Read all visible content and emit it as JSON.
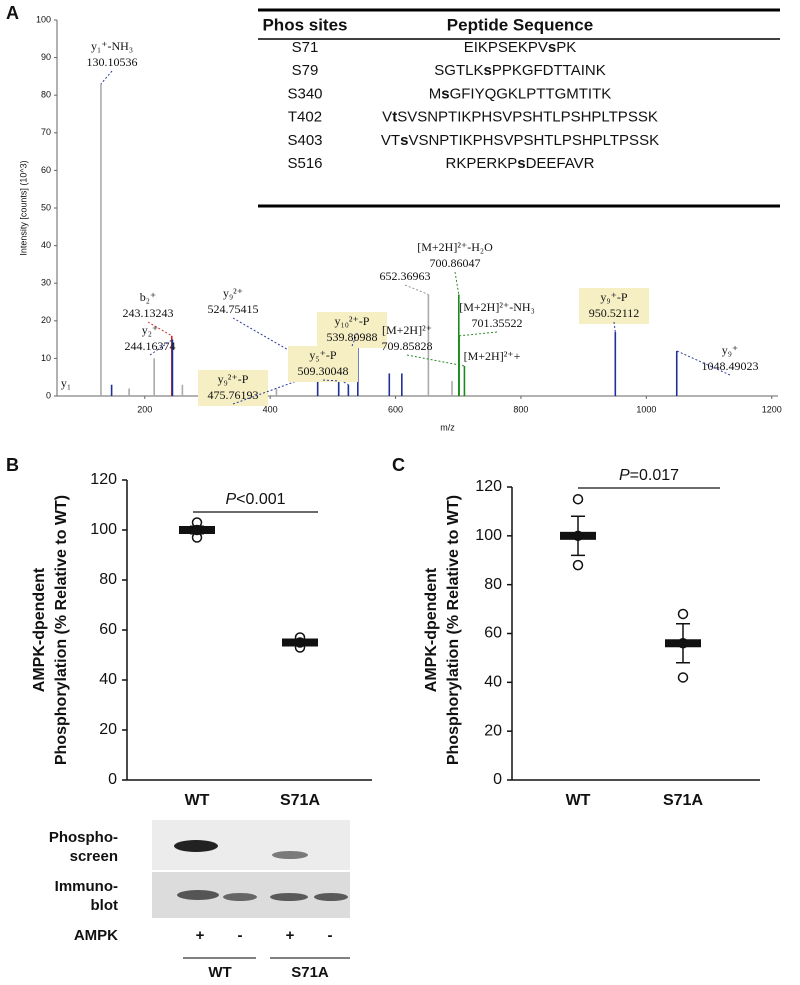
{
  "panel_labels": [
    "A",
    "B",
    "C"
  ],
  "table": {
    "header": [
      "Phos sites",
      "Peptide Sequence"
    ],
    "rows": [
      [
        "S71",
        "EIKPSEKPVsPK"
      ],
      [
        "S79",
        "SGTLKsPPKGFDTTAINK"
      ],
      [
        "S340",
        "MsGFIYQGKLPTTGMTITK"
      ],
      [
        "T402",
        "VtSVSNPTIKPHSVPSHTLPSHPLTPSSK"
      ],
      [
        "S403",
        "VTsVSNPTIKPHSVPSHTLPSHPLTPSSK"
      ],
      [
        "S516",
        "RKPERKPsDEEFAVR"
      ]
    ]
  },
  "blot": {
    "rows": [
      [
        "Phospho-",
        "screen"
      ],
      [
        "Immuno-",
        "blot"
      ]
    ],
    "treatment": "AMPK",
    "signs": [
      "+",
      "-",
      "+",
      "-"
    ],
    "groups": [
      "WT",
      "S71A"
    ]
  },
  "chart_data": [
    {
      "type": "stem",
      "ylabel": "Intensity [counts] (10^3)",
      "xlabel": "m/z",
      "xlim": [
        60,
        1210
      ],
      "xticks": [
        200,
        400,
        600,
        800,
        1000,
        1200
      ],
      "ylim": [
        0,
        100
      ],
      "yticks": [
        0,
        10,
        20,
        30,
        40,
        50,
        60,
        70,
        80,
        90,
        100
      ],
      "x": [
        130.1,
        147.11,
        175,
        215,
        243.13,
        244.16,
        260,
        290,
        410,
        475.76,
        509.3,
        524.75,
        539.81,
        590,
        610,
        652.37,
        690,
        700.86,
        701.36,
        709.86,
        950.52,
        1048.49
      ],
      "values": [
        83,
        3,
        2,
        10,
        16,
        15,
        3,
        2,
        2,
        6,
        4,
        3,
        17,
        6,
        6,
        27,
        4,
        27,
        16,
        8,
        17,
        12
      ],
      "colors": [
        "#aaaaaa",
        "#1f2f9a",
        "#aaaaaa",
        "#aaaaaa",
        "#c82828",
        "#1f2f9a",
        "#aaaaaa",
        "#aaaaaa",
        "#aaaaaa",
        "#1f2f9a",
        "#1f2f9a",
        "#1f2f9a",
        "#1f2f9a",
        "#1f2f9a",
        "#1f2f9a",
        "#aaaaaa",
        "#aaaaaa",
        "#1a8a1a",
        "#1a8a1a",
        "#1a8a1a",
        "#1f2f9a",
        "#1f2f9a"
      ],
      "annotations": [
        {
          "label": "y₁⁺-NH₃",
          "mz": 130.10536,
          "color": "#2b3a9c"
        },
        {
          "label": "b₂⁺",
          "mz": 243.13243,
          "color": "#c83030"
        },
        {
          "label": "y₂⁺",
          "mz": 244.16374,
          "color": "#2b3a9c"
        },
        {
          "label": "y₉²⁺-P",
          "mz": 475.76193,
          "color": "#2b3a9c",
          "boxed": true
        },
        {
          "label": "y₉²⁺",
          "mz": 524.75415,
          "color": "#2b3a9c"
        },
        {
          "label": "y₅⁺-P",
          "mz": 509.30048,
          "color": "#2b3a9c",
          "boxed": true
        },
        {
          "label": "y₁₀²⁺-P",
          "mz": 539.80988,
          "color": "#2b3a9c",
          "boxed": true
        },
        {
          "mz": 652.36963,
          "color": "#999999"
        },
        {
          "label": "[M+2H]²⁺-H₂O",
          "mz": 700.86047,
          "color": "#2a8a2a"
        },
        {
          "label": "[M+2H]²⁺-NH₃",
          "mz": 701.35522,
          "color": "#2a8a2a"
        },
        {
          "label": "[M+2H]²⁺",
          "mz": 709.85828,
          "color": "#2a8a2a"
        },
        {
          "label": "[M+2H]²⁺+",
          "color": "#2a8a2a"
        },
        {
          "label": "y₉⁺-P",
          "mz": 950.52112,
          "color": "#2b3a9c",
          "boxed": true
        },
        {
          "label": "y₉⁺",
          "mz": 1048.49023,
          "color": "#2b3a9c"
        },
        {
          "label": "y₁",
          "color": "#2b3a9c"
        }
      ]
    },
    {
      "type": "dot",
      "categories": [
        "WT",
        "S71A"
      ],
      "ylabel": [
        "AMPK-dpendent",
        "Phosphorylation (% Relative to WT)"
      ],
      "ylim": [
        0,
        120
      ],
      "yticks": [
        0,
        20,
        40,
        60,
        80,
        100,
        120
      ],
      "points": [
        [
          97,
          100,
          103
        ],
        [
          53,
          55,
          57
        ]
      ],
      "means": [
        100,
        55
      ],
      "errors": [
        1.5,
        1.2
      ],
      "pvalue": [
        "P",
        "<0.001"
      ]
    },
    {
      "type": "dot",
      "categories": [
        "WT",
        "S71A"
      ],
      "ylabel": [
        "AMPK-dpendent",
        "Phosphorylation (% Relative to WT)"
      ],
      "ylim": [
        0,
        120
      ],
      "yticks": [
        0,
        20,
        40,
        60,
        80,
        100,
        120
      ],
      "points": [
        [
          115,
          100,
          88
        ],
        [
          68,
          56,
          42
        ]
      ],
      "means": [
        100,
        56
      ],
      "errors": [
        8,
        8
      ],
      "pvalue": [
        "P",
        "=0.017"
      ]
    }
  ]
}
